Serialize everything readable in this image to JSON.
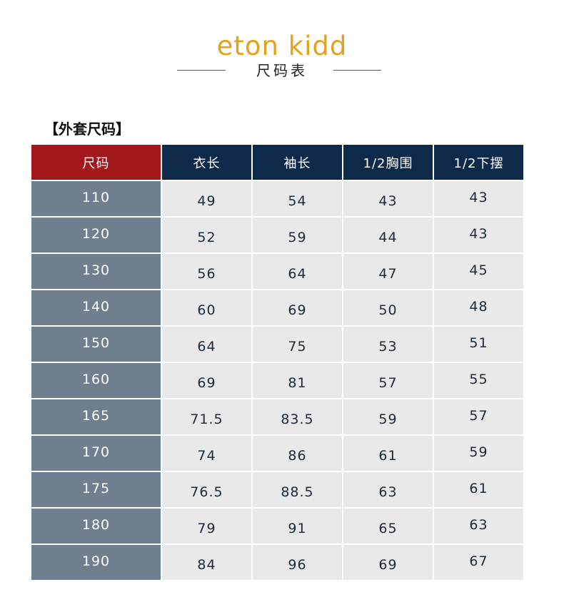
{
  "brand": "eton kidd",
  "subtitle": "尺码表",
  "section_title": "【外套尺码】",
  "table": {
    "headers": [
      "尺码",
      "衣长",
      "袖长",
      "1/2胸围",
      "1/2下摆"
    ],
    "rows": [
      [
        "110",
        "49",
        "54",
        "43",
        "43"
      ],
      [
        "120",
        "52",
        "59",
        "44",
        "43"
      ],
      [
        "130",
        "56",
        "64",
        "47",
        "45"
      ],
      [
        "140",
        "60",
        "69",
        "50",
        "48"
      ],
      [
        "150",
        "64",
        "75",
        "53",
        "51"
      ],
      [
        "160",
        "69",
        "81",
        "57",
        "55"
      ],
      [
        "165",
        "71.5",
        "83.5",
        "59",
        "57"
      ],
      [
        "170",
        "74",
        "86",
        "61",
        "59"
      ],
      [
        "175",
        "76.5",
        "88.5",
        "63",
        "61"
      ],
      [
        "180",
        "79",
        "91",
        "65",
        "63"
      ],
      [
        "190",
        "84",
        "96",
        "69",
        "67"
      ]
    ]
  },
  "colors": {
    "brand": "#e2a11f",
    "header_first": "#a3191b",
    "header": "#0d2a4a",
    "size_column": "#6f7f8f",
    "value_cells": "#e9e9e9"
  }
}
